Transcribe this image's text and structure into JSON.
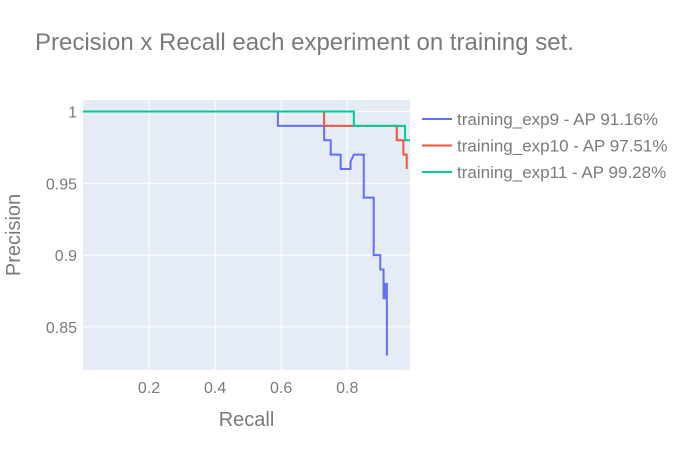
{
  "chart_data": {
    "type": "line",
    "title": "Precision x Recall each experiment on training set.",
    "xlabel": "Recall",
    "ylabel": "Precision",
    "xlim": [
      0.0,
      0.99
    ],
    "ylim": [
      0.82,
      1.008
    ],
    "x_ticks": [
      0.2,
      0.4,
      0.6,
      0.8
    ],
    "x_tick_labels": [
      "0.2",
      "0.4",
      "0.6",
      "0.8"
    ],
    "y_ticks": [
      0.85,
      0.9,
      0.95,
      1.0
    ],
    "y_tick_labels": [
      "0.85",
      "0.9",
      "0.95",
      "1"
    ],
    "grid": true,
    "legend_position": "right",
    "plot_background": "#e5ecf6",
    "series": [
      {
        "name": "training_exp9 - AP 91.16%",
        "color": "#636efa",
        "line_shape": "step",
        "x": [
          0.0,
          0.59,
          0.59,
          0.73,
          0.73,
          0.75,
          0.75,
          0.78,
          0.78,
          0.81,
          0.81,
          0.82,
          0.82,
          0.85,
          0.85,
          0.88,
          0.88,
          0.9,
          0.9,
          0.91,
          0.91,
          0.915,
          0.915,
          0.92,
          0.92
        ],
        "y": [
          1.0,
          1.0,
          0.99,
          0.99,
          0.98,
          0.98,
          0.97,
          0.97,
          0.96,
          0.96,
          0.965,
          0.97,
          0.97,
          0.97,
          0.94,
          0.94,
          0.9,
          0.9,
          0.89,
          0.89,
          0.87,
          0.87,
          0.88,
          0.88,
          0.83
        ]
      },
      {
        "name": "training_exp10 - AP 97.51%",
        "color": "#ef553b",
        "line_shape": "step",
        "x": [
          0.0,
          0.73,
          0.73,
          0.95,
          0.95,
          0.97,
          0.97,
          0.98,
          0.98
        ],
        "y": [
          1.0,
          1.0,
          0.99,
          0.99,
          0.98,
          0.98,
          0.97,
          0.97,
          0.96
        ]
      },
      {
        "name": "training_exp11 - AP 99.28%",
        "color": "#00cc96",
        "line_shape": "step",
        "x": [
          0.0,
          0.82,
          0.82,
          0.975,
          0.975,
          0.99
        ],
        "y": [
          1.0,
          1.0,
          0.99,
          0.99,
          0.98,
          0.98
        ]
      }
    ]
  }
}
